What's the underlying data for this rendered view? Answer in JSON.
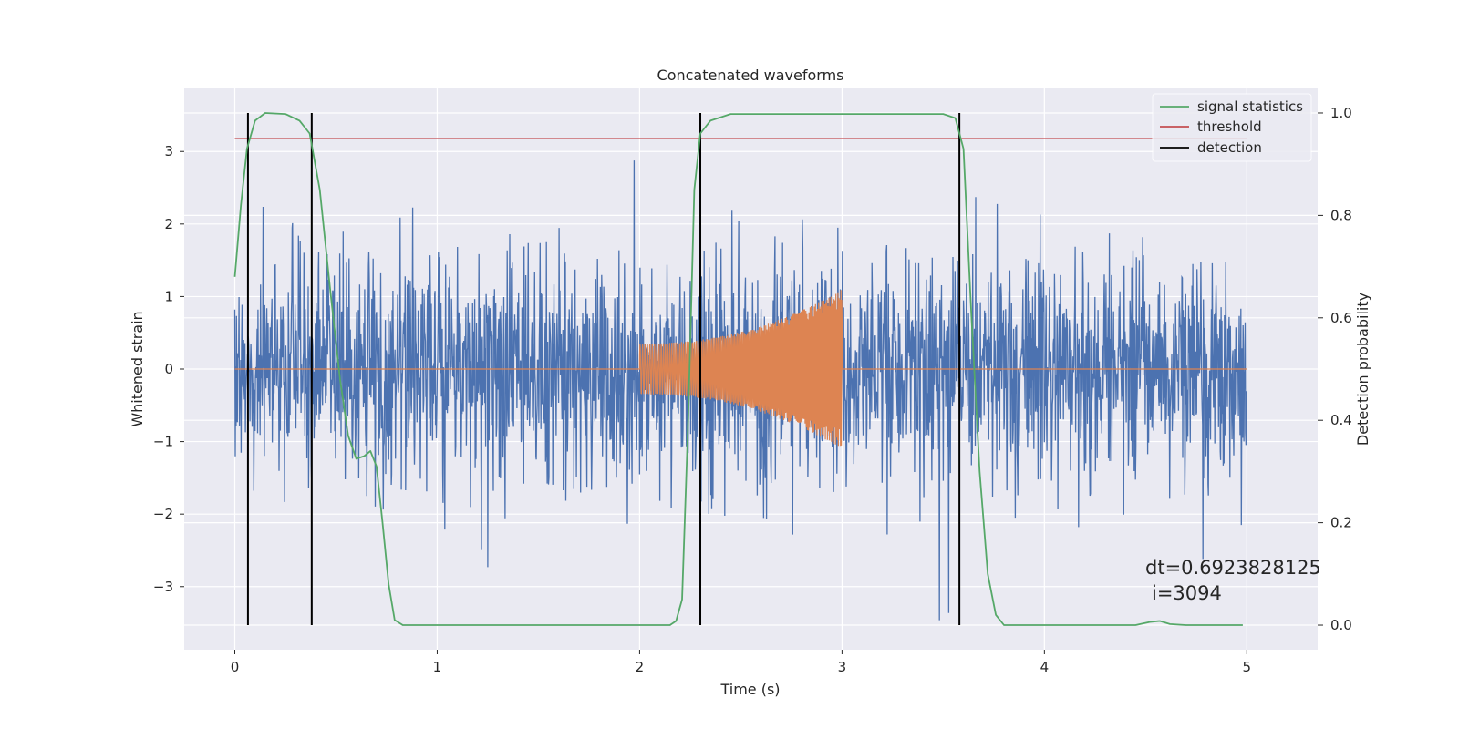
{
  "chart_data": {
    "type": "line",
    "title": "Concatenated waveforms",
    "xlabel": "Time (s)",
    "ylabel_left": "Whitened strain",
    "ylabel_right": "Detection probability",
    "xlim": [
      -0.25,
      5.35
    ],
    "ylim_left": [
      -3.87,
      3.87
    ],
    "ylim_right": [
      -0.048,
      1.048
    ],
    "x_ticks": [
      0,
      1,
      2,
      3,
      4,
      5
    ],
    "x_tick_labels": [
      "0",
      "1",
      "2",
      "3",
      "4",
      "5"
    ],
    "y_left_ticks": [
      -3,
      -2,
      -1,
      0,
      1,
      2,
      3
    ],
    "y_left_tick_labels": [
      "−3",
      "−2",
      "−1",
      "0",
      "1",
      "2",
      "3"
    ],
    "y_right_ticks": [
      0.0,
      0.2,
      0.4,
      0.6,
      0.8,
      1.0
    ],
    "y_right_tick_labels": [
      "0.0",
      "0.2",
      "0.4",
      "0.6",
      "0.8",
      "1.0"
    ],
    "grid": true,
    "legend_position": "top-right",
    "colors": {
      "background": "#eaeaf2",
      "grid": "#ffffff",
      "strain": "#4c72b0",
      "template": "#dd8452",
      "signal_statistics": "#55a868",
      "threshold": "#c44e52",
      "detection": "#000000"
    },
    "series": [
      {
        "name": "",
        "axis": "left",
        "description_kind": "noisy whitened strain",
        "x_range": [
          0,
          5
        ],
        "typical_std": 0.7,
        "peak_min": -3.55,
        "peak_max": 3.35
      },
      {
        "name": "",
        "axis": "left",
        "description_kind": "injected chirp",
        "x_range": [
          2.0,
          3.0
        ],
        "amplitude_start": 0.35,
        "amplitude_end": 1.1,
        "zero_outside": [
          0,
          5
        ]
      },
      {
        "name": "signal statistics",
        "axis": "right",
        "points": [
          [
            0.0,
            0.68
          ],
          [
            0.03,
            0.82
          ],
          [
            0.06,
            0.93
          ],
          [
            0.1,
            0.985
          ],
          [
            0.15,
            1.0
          ],
          [
            0.25,
            0.998
          ],
          [
            0.32,
            0.985
          ],
          [
            0.37,
            0.96
          ],
          [
            0.42,
            0.85
          ],
          [
            0.47,
            0.66
          ],
          [
            0.52,
            0.48
          ],
          [
            0.56,
            0.37
          ],
          [
            0.6,
            0.325
          ],
          [
            0.64,
            0.33
          ],
          [
            0.67,
            0.34
          ],
          [
            0.7,
            0.31
          ],
          [
            0.73,
            0.2
          ],
          [
            0.76,
            0.08
          ],
          [
            0.79,
            0.01
          ],
          [
            0.83,
            0.0
          ],
          [
            2.15,
            0.0
          ],
          [
            2.18,
            0.008
          ],
          [
            2.21,
            0.05
          ],
          [
            2.24,
            0.4
          ],
          [
            2.27,
            0.85
          ],
          [
            2.3,
            0.96
          ],
          [
            2.35,
            0.985
          ],
          [
            2.45,
            0.998
          ],
          [
            3.5,
            0.998
          ],
          [
            3.56,
            0.99
          ],
          [
            3.6,
            0.93
          ],
          [
            3.64,
            0.6
          ],
          [
            3.68,
            0.3
          ],
          [
            3.72,
            0.1
          ],
          [
            3.76,
            0.02
          ],
          [
            3.8,
            0.0
          ],
          [
            4.45,
            0.0
          ],
          [
            4.52,
            0.006
          ],
          [
            4.57,
            0.008
          ],
          [
            4.62,
            0.002
          ],
          [
            4.7,
            0.0
          ],
          [
            4.98,
            0.0
          ]
        ]
      },
      {
        "name": "threshold",
        "axis": "right",
        "x_range": [
          0,
          5
        ],
        "value": 0.95
      },
      {
        "name": "detection",
        "axis": "right",
        "x_positions": [
          0.065,
          0.38,
          2.3,
          3.58
        ],
        "y_range": [
          0.0,
          1.0
        ]
      }
    ],
    "annotations": [
      "dt=0.6923828125",
      "i=3094"
    ]
  }
}
